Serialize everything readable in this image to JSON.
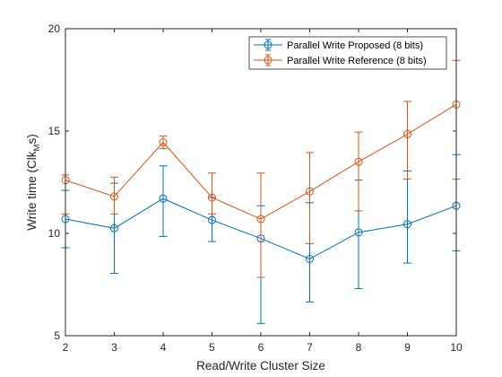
{
  "chart_data": {
    "type": "line",
    "title": "",
    "xlabel": "Read/Write Cluster Size",
    "ylabel": "Write time (Clk",
    "ylabel_sub": "M",
    "ylabel_tail": "s)",
    "x": [
      2,
      3,
      4,
      5,
      6,
      7,
      8,
      9,
      10
    ],
    "xlim": [
      2,
      10
    ],
    "ylim": [
      5,
      20
    ],
    "xticks": [
      2,
      3,
      4,
      5,
      6,
      7,
      8,
      9,
      10
    ],
    "yticks": [
      5,
      10,
      15,
      20
    ],
    "grid": false,
    "legend_position": "top-right",
    "series": [
      {
        "name": "Parallel Write Proposed (8 bits)",
        "color": "#0072BD",
        "marker": "circle",
        "values": [
          10.7,
          10.25,
          11.7,
          10.65,
          9.75,
          8.75,
          10.05,
          10.45,
          11.35
        ],
        "err_low": [
          9.3,
          8.05,
          9.85,
          9.6,
          5.6,
          6.65,
          7.3,
          8.55,
          9.15
        ],
        "err_high": [
          12.1,
          12.45,
          13.3,
          11.75,
          11.35,
          11.5,
          12.6,
          13.05,
          13.85
        ]
      },
      {
        "name": "Parallel Write Reference (8 bits)",
        "color": "#D95319",
        "marker": "circle",
        "values": [
          12.6,
          11.8,
          14.45,
          11.75,
          10.7,
          12.05,
          13.5,
          14.85,
          16.3
        ],
        "err_low": [
          10.95,
          10.95,
          14.15,
          10.95,
          7.85,
          9.5,
          11.1,
          12.65,
          12.65
        ],
        "err_high": [
          12.85,
          12.75,
          14.75,
          12.95,
          12.95,
          13.95,
          14.95,
          16.45,
          18.45
        ]
      }
    ]
  }
}
